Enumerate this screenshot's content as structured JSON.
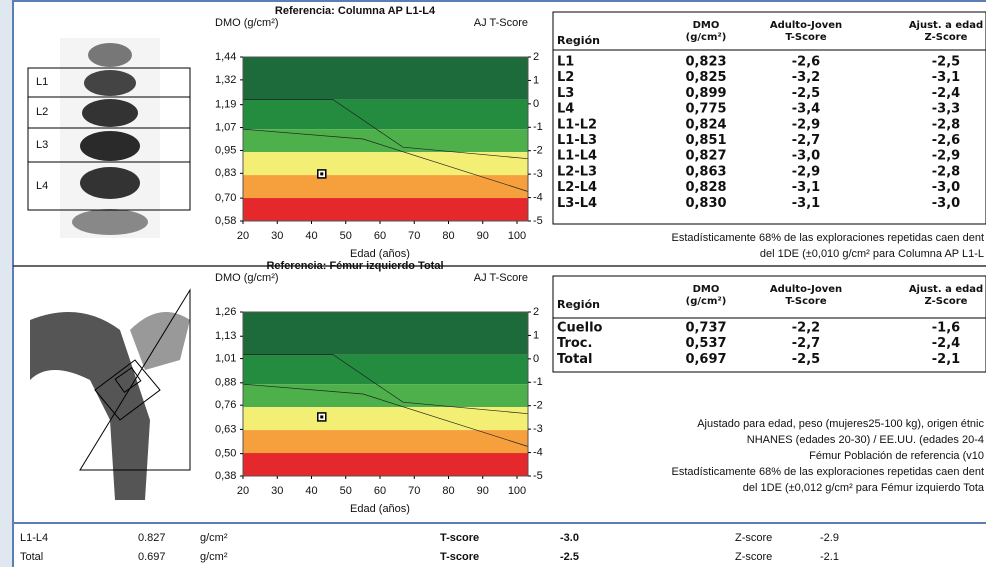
{
  "spine": {
    "image_labels": [
      "L1",
      "L2",
      "L3",
      "L4"
    ],
    "chart": {
      "title": "Referencia: Columna AP L1-L4",
      "y_label": "DMO (g/cm²)",
      "y2_label": "AJ T-Score",
      "x_label": "Edad (años)",
      "xlim": [
        20,
        100
      ],
      "xticks": [
        20,
        30,
        40,
        50,
        60,
        70,
        80,
        90,
        100
      ],
      "ylim": [
        0.58,
        1.44
      ],
      "yticks": [
        {
          "value": 1.44,
          "label": "1,44"
        },
        {
          "value": 1.32,
          "label": "1,32"
        },
        {
          "value": 1.19,
          "label": "1,19"
        },
        {
          "value": 1.07,
          "label": "1,07"
        },
        {
          "value": 0.95,
          "label": "0,95"
        },
        {
          "value": 0.83,
          "label": "0,83"
        },
        {
          "value": 0.7,
          "label": "0,70"
        },
        {
          "value": 0.58,
          "label": "0,58"
        }
      ],
      "y2lim": [
        -5,
        2
      ],
      "y2ticks": [
        2,
        1,
        0,
        -1,
        -2,
        -3,
        -4,
        -5
      ],
      "point": {
        "x": 43,
        "y": 0.827
      }
    },
    "table": {
      "headers": [
        [
          "Región"
        ],
        [
          "DMO",
          "(g/cm²)"
        ],
        [
          "Adulto-Joven",
          "T-Score"
        ],
        [
          "Ajust. a edad",
          "Z-Score"
        ]
      ],
      "rows": [
        [
          "L1",
          "0,823",
          "-2,6",
          "-2,5"
        ],
        [
          "L2",
          "0,825",
          "-3,2",
          "-3,1"
        ],
        [
          "L3",
          "0,899",
          "-2,5",
          "-2,4"
        ],
        [
          "L4",
          "0,775",
          "-3,4",
          "-3,3"
        ],
        [
          "L1-L2",
          "0,824",
          "-2,9",
          "-2,8"
        ],
        [
          "L1-L3",
          "0,851",
          "-2,7",
          "-2,6"
        ],
        [
          "L1-L4",
          "0,827",
          "-3,0",
          "-2,9"
        ],
        [
          "L2-L3",
          "0,863",
          "-2,9",
          "-2,8"
        ],
        [
          "L2-L4",
          "0,828",
          "-3,1",
          "-3,0"
        ],
        [
          "L3-L4",
          "0,830",
          "-3,1",
          "-3,0"
        ]
      ]
    },
    "notes": [
      "Estadísticamente 68% de las exploraciones repetidas caen dent",
      "del 1DE (±0,010 g/cm² para Columna AP L1-L"
    ]
  },
  "femur": {
    "chart": {
      "title": "Referencia: Fémur izquierdo Total",
      "y_label": "DMO (g/cm²)",
      "y2_label": "AJ T-Score",
      "x_label": "Edad (años)",
      "xlim": [
        20,
        100
      ],
      "xticks": [
        20,
        30,
        40,
        50,
        60,
        70,
        80,
        90,
        100
      ],
      "ylim": [
        0.38,
        1.26
      ],
      "yticks": [
        {
          "value": 1.26,
          "label": "1,26"
        },
        {
          "value": 1.13,
          "label": "1,13"
        },
        {
          "value": 1.01,
          "label": "1,01"
        },
        {
          "value": 0.88,
          "label": "0,88"
        },
        {
          "value": 0.76,
          "label": "0,76"
        },
        {
          "value": 0.63,
          "label": "0,63"
        },
        {
          "value": 0.5,
          "label": "0,50"
        },
        {
          "value": 0.38,
          "label": "0,38"
        }
      ],
      "y2lim": [
        -5,
        2
      ],
      "y2ticks": [
        2,
        1,
        0,
        -1,
        -2,
        -3,
        -4,
        -5
      ],
      "point": {
        "x": 43,
        "y": 0.697
      }
    },
    "table": {
      "headers": [
        [
          "Región"
        ],
        [
          "DMO",
          "(g/cm²)"
        ],
        [
          "Adulto-Joven",
          "T-Score"
        ],
        [
          "Ajust. a edad",
          "Z-Score"
        ]
      ],
      "rows": [
        [
          "Cuello",
          "0,737",
          "-2,2",
          "-1,6"
        ],
        [
          "Troc.",
          "0,537",
          "-2,7",
          "-2,4"
        ],
        [
          "Total",
          "0,697",
          "-2,5",
          "-2,1"
        ]
      ]
    },
    "notes": [
      "Ajustado para edad, peso (mujeres25-100 kg), origen étnic",
      "NHANES (edades 20-30) / EE.UU. (edades 20-4",
      "Fémur Población de referencia (v10",
      "Estadísticamente 68% de las exploraciones repetidas caen dent",
      "del 1DE (±0,012 g/cm² para Fémur izquierdo Tota"
    ]
  },
  "summary": [
    [
      "L1-L4",
      "0.827",
      "g/cm²",
      "T-score",
      "-3.0",
      "Z-score",
      "-2.9"
    ],
    [
      "Total",
      "0.697",
      "g/cm²",
      "T-score",
      "-2.5",
      "Z-score",
      "-2.1"
    ]
  ]
}
